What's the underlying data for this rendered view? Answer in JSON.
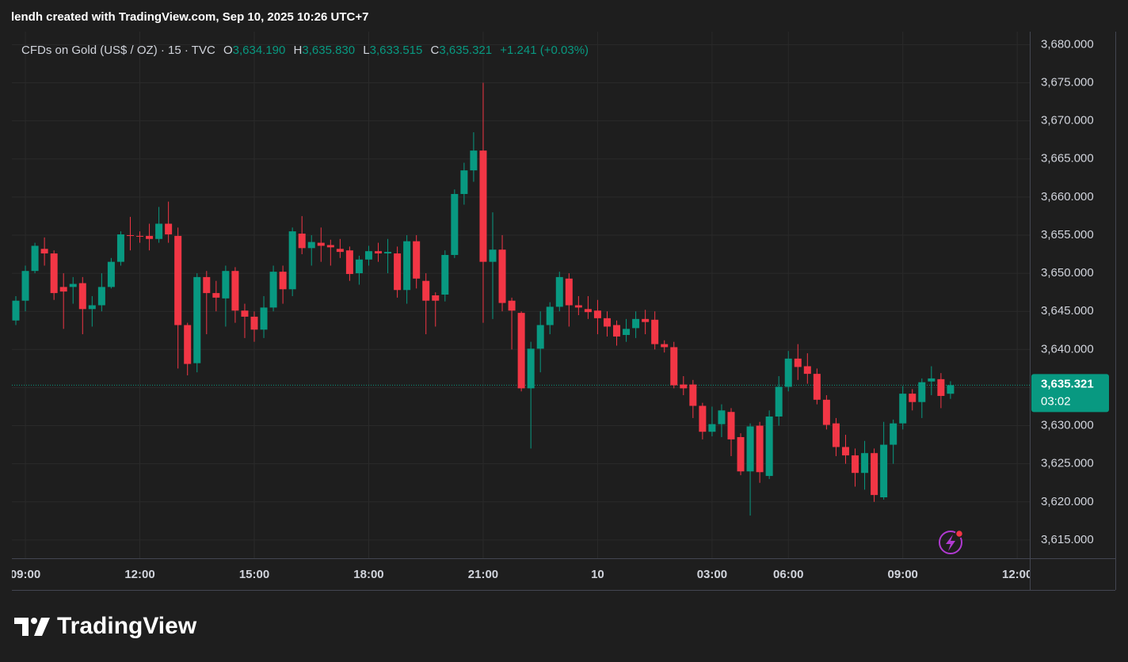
{
  "chart_data": {
    "type": "candlestick",
    "title": "lendh created with TradingView.com, Sep 10, 2025 10:26 UTC+7",
    "legend": {
      "symbol": "CFDs on Gold (US$ / OZ) · 15 · TVC",
      "items": [
        {
          "label": "O",
          "value": "3,634.190"
        },
        {
          "label": "H",
          "value": "3,635.830"
        },
        {
          "label": "L",
          "value": "3,633.515"
        },
        {
          "label": "C",
          "value": "3,635.321"
        }
      ],
      "change": "+1.241 (+0.03%)"
    },
    "brand": "TradingView",
    "up_color": "#089981",
    "down_color": "#f23645",
    "grid": true,
    "categories": [
      null,
      "09:00",
      null,
      null,
      null,
      null,
      null,
      null,
      null,
      null,
      null,
      null,
      null,
      "12:00",
      null,
      null,
      null,
      null,
      null,
      null,
      null,
      null,
      null,
      null,
      null,
      "15:00",
      null,
      null,
      null,
      null,
      null,
      null,
      null,
      null,
      null,
      null,
      null,
      "18:00",
      null,
      null,
      null,
      null,
      null,
      null,
      null,
      null,
      null,
      null,
      null,
      "21:00",
      null,
      null,
      null,
      null,
      null,
      null,
      null,
      null,
      null,
      null,
      null,
      "10",
      null,
      null,
      null,
      null,
      null,
      null,
      null,
      null,
      null,
      null,
      null,
      "03:00",
      null,
      null,
      null,
      null,
      null,
      null,
      null,
      "06:00",
      null,
      null,
      null,
      null,
      null,
      null,
      null,
      null,
      null,
      null,
      null,
      "09:00",
      null,
      null,
      null,
      null,
      null,
      null,
      null,
      null,
      null,
      null,
      null,
      "12:00"
    ],
    "open": [
      3643.8,
      3646.4,
      3650.3,
      3653.2,
      3652.6,
      3648.2,
      3648.2,
      3648.7,
      3645.3,
      3645.8,
      3648.2,
      3651.5,
      3655.0,
      3654.9,
      3654.9,
      3654.5,
      3656.5,
      3654.9,
      3643.2,
      3638.2,
      3649.5,
      3647.4,
      3646.7,
      3650.3,
      3645.1,
      3644.3,
      3642.6,
      3645.5,
      3650.2,
      3647.9,
      3655.2,
      3653.3,
      3654.0,
      3653.7,
      3653.2,
      3653.0,
      3650.0,
      3651.8,
      3652.9,
      3652.6,
      3652.6,
      3647.8,
      3654.2,
      3649.0,
      3647.1,
      3647.2,
      3652.4,
      3660.4,
      3663.5,
      3666.1,
      3651.5,
      3653.1,
      3646.4,
      3644.8,
      3634.9,
      3640.1,
      3643.2,
      3645.6,
      3649.3,
      3645.8,
      3645.3,
      3645.1,
      3644.1,
      3643.2,
      3641.9,
      3642.8,
      3644.0,
      3643.9,
      3640.7,
      3640.3,
      3635.4,
      3635.4,
      3632.6,
      3629.2,
      3630.2,
      3631.8,
      3628.5,
      3624.0,
      3630.0,
      3623.4,
      3631.2,
      3635.1,
      3638.8,
      3637.8,
      3636.8,
      3633.4,
      3630.3,
      3627.2,
      3626.1,
      3623.8,
      3626.4,
      3620.6,
      3627.5,
      3630.3,
      3634.2,
      3633.1,
      3635.8,
      3636.1,
      3634.19,
      null,
      null,
      null,
      null,
      null,
      null,
      null
    ],
    "high": [
      3647.0,
      3651.0,
      3654.0,
      3654.7,
      3653.0,
      3650.0,
      3649.5,
      3649.5,
      3647.0,
      3650.0,
      3652.0,
      3655.5,
      3657.4,
      3655.5,
      3656.5,
      3658.7,
      3659.4,
      3656.0,
      3643.5,
      3650.0,
      3650.3,
      3649.0,
      3651.0,
      3650.8,
      3646.0,
      3645.0,
      3647.0,
      3651.0,
      3651.0,
      3656.0,
      3657.5,
      3655.0,
      3656.0,
      3654.4,
      3654.5,
      3653.5,
      3652.3,
      3653.6,
      3654.0,
      3654.5,
      3653.5,
      3655.0,
      3655.0,
      3650.0,
      3647.5,
      3653.0,
      3661.0,
      3664.5,
      3668.5,
      3675.0,
      3658.0,
      3655.0,
      3646.8,
      3645.0,
      3641.0,
      3645.0,
      3646.2,
      3650.2,
      3650.0,
      3647.0,
      3647.0,
      3646.5,
      3645.0,
      3643.8,
      3644.0,
      3645.0,
      3645.2,
      3645.0,
      3641.2,
      3641.0,
      3636.5,
      3636.0,
      3633.0,
      3632.5,
      3632.8,
      3632.3,
      3629.0,
      3630.3,
      3630.5,
      3632.0,
      3636.5,
      3639.8,
      3640.7,
      3639.5,
      3637.5,
      3634.0,
      3631.0,
      3628.8,
      3627.0,
      3628.0,
      3627.0,
      3630.5,
      3630.8,
      3635.2,
      3634.8,
      3636.2,
      3637.8,
      3636.9,
      3635.83,
      null,
      null,
      null,
      null,
      null,
      null,
      null
    ],
    "low": [
      3643.2,
      3645.0,
      3650.0,
      3651.0,
      3646.5,
      3642.7,
      3646.0,
      3642.0,
      3643.0,
      3645.0,
      3648.0,
      3651.0,
      3653.0,
      3654.0,
      3653.0,
      3654.0,
      3654.0,
      3637.5,
      3636.6,
      3637.0,
      3642.0,
      3645.0,
      3643.0,
      3643.5,
      3641.5,
      3641.0,
      3641.5,
      3645.0,
      3646.0,
      3647.0,
      3652.5,
      3651.0,
      3651.5,
      3651.0,
      3652.0,
      3649.0,
      3648.5,
      3651.0,
      3651.5,
      3650.0,
      3646.8,
      3646.0,
      3648.0,
      3642.0,
      3643.0,
      3646.3,
      3652.0,
      3659.0,
      3662.0,
      3643.5,
      3644.0,
      3645.0,
      3640.0,
      3634.5,
      3627.0,
      3637.0,
      3642.0,
      3645.0,
      3643.0,
      3644.5,
      3644.0,
      3642.0,
      3641.7,
      3640.5,
      3641.0,
      3641.5,
      3642.0,
      3640.0,
      3639.6,
      3634.9,
      3634.0,
      3631.0,
      3628.2,
      3628.6,
      3628.5,
      3626.0,
      3623.5,
      3618.2,
      3622.5,
      3623.0,
      3630.0,
      3634.5,
      3636.0,
      3635.5,
      3632.8,
      3629.5,
      3626.0,
      3625.0,
      3622.0,
      3621.6,
      3620.0,
      3620.3,
      3625.0,
      3629.5,
      3632.0,
      3631.0,
      3634.0,
      3632.3,
      3633.515,
      null,
      null,
      null,
      null,
      null,
      null,
      null
    ],
    "close": [
      3646.4,
      3650.3,
      3653.6,
      3652.6,
      3647.4,
      3647.6,
      3648.6,
      3645.3,
      3645.8,
      3648.2,
      3651.5,
      3655.1,
      3654.9,
      3654.8,
      3654.5,
      3656.5,
      3655.1,
      3643.2,
      3638.1,
      3649.5,
      3647.4,
      3646.8,
      3650.3,
      3645.1,
      3644.3,
      3642.6,
      3645.5,
      3650.2,
      3647.9,
      3655.5,
      3653.3,
      3654.1,
      3653.6,
      3653.4,
      3652.8,
      3649.9,
      3651.8,
      3652.9,
      3652.6,
      3652.8,
      3647.8,
      3654.2,
      3649.3,
      3646.4,
      3646.4,
      3652.4,
      3660.4,
      3663.5,
      3666.1,
      3651.5,
      3653.1,
      3646.1,
      3645.1,
      3634.9,
      3640.1,
      3643.2,
      3645.6,
      3649.5,
      3645.8,
      3645.5,
      3644.9,
      3644.1,
      3643.0,
      3641.7,
      3642.7,
      3644.0,
      3643.6,
      3640.7,
      3640.3,
      3635.3,
      3634.9,
      3632.6,
      3629.2,
      3630.2,
      3632.0,
      3628.2,
      3624.0,
      3629.9,
      3623.9,
      3631.2,
      3635.1,
      3638.8,
      3637.7,
      3636.8,
      3633.4,
      3630.1,
      3627.2,
      3626.1,
      3623.8,
      3626.4,
      3620.9,
      3627.5,
      3630.3,
      3634.2,
      3633.1,
      3635.7,
      3636.2,
      3633.9,
      3635.321,
      null,
      null,
      null,
      null,
      null,
      null,
      null
    ],
    "ylim": [
      3612.6,
      3681.7
    ],
    "yticks": [
      {
        "value": 3615,
        "label": "3,615.000"
      },
      {
        "value": 3620,
        "label": "3,620.000"
      },
      {
        "value": 3625,
        "label": "3,625.000"
      },
      {
        "value": 3630,
        "label": "3,630.000"
      },
      {
        "value": 3635,
        "label": "3,635.000"
      },
      {
        "value": 3640,
        "label": "3,640.000"
      },
      {
        "value": 3645,
        "label": "3,645.000"
      },
      {
        "value": 3650,
        "label": "3,650.000"
      },
      {
        "value": 3655,
        "label": "3,655.000"
      },
      {
        "value": 3660,
        "label": "3,660.000"
      },
      {
        "value": 3665,
        "label": "3,665.000"
      },
      {
        "value": 3670,
        "label": "3,670.000"
      },
      {
        "value": 3675,
        "label": "3,675.000"
      },
      {
        "value": 3680,
        "label": "3,680.000"
      }
    ],
    "last_price": {
      "value": 3635.321,
      "label": "3,635.321",
      "countdown": "03:02"
    }
  }
}
